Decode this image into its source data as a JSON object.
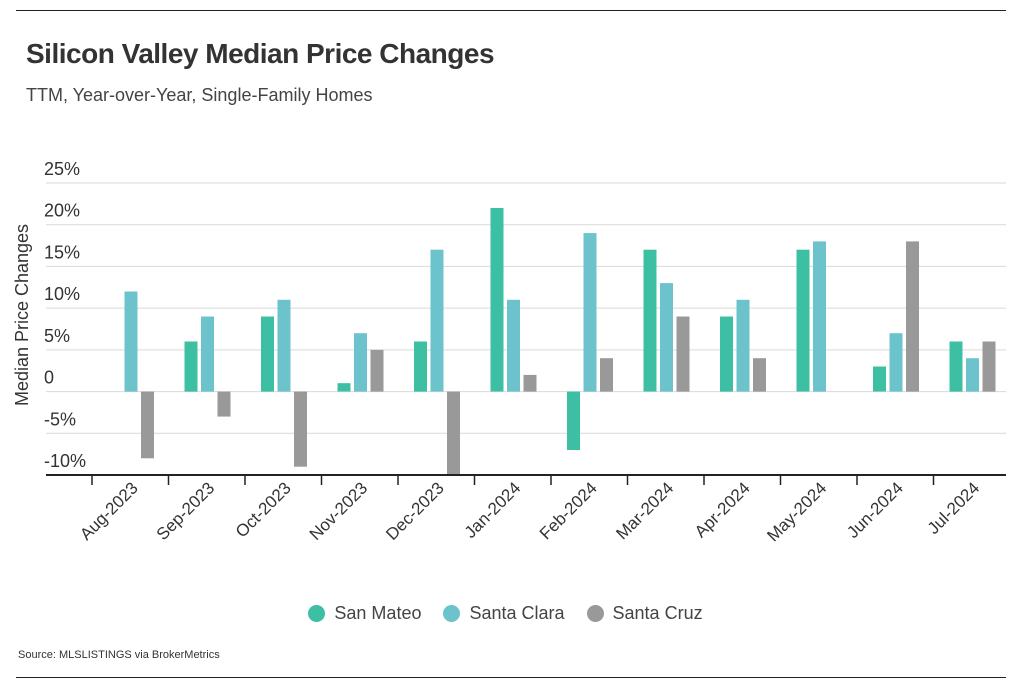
{
  "header": {
    "title": "Silicon Valley Median Price Changes",
    "subtitle": "TTM, Year-over-Year, Single-Family Homes"
  },
  "footer": {
    "source": "Source:  MLSLISTINGS via BrokerMetrics"
  },
  "colors": {
    "san_mateo": "#3dbfa3",
    "santa_clara": "#6cc3cc",
    "santa_cruz": "#999999",
    "grid": "#d9d9d9",
    "axis": "#222222",
    "text": "#333333"
  },
  "chart_data": {
    "type": "bar",
    "title": "Silicon Valley Median Price Changes",
    "subtitle": "TTM, Year-over-Year, Single-Family Homes",
    "xlabel": "",
    "ylabel": "Median Price Changes",
    "ylim": [
      -10,
      25
    ],
    "yticks": [
      25,
      20,
      15,
      10,
      5,
      0,
      -5,
      -10
    ],
    "ytick_labels": [
      "25%",
      "20%",
      "15%",
      "10%",
      "5%",
      "0",
      "-5%",
      "-10%"
    ],
    "grid": "horizontal",
    "legend_position": "bottom",
    "categories": [
      "Aug-2023",
      "Sep-2023",
      "Oct-2023",
      "Nov-2023",
      "Dec-2023",
      "Jan-2024",
      "Feb-2024",
      "Mar-2024",
      "Apr-2024",
      "May-2024",
      "Jun-2024",
      "Jul-2024"
    ],
    "series": [
      {
        "name": "San Mateo",
        "color": "#3dbfa3",
        "values": [
          null,
          6,
          9,
          1,
          6,
          22,
          -7,
          17,
          9,
          17,
          3,
          6
        ]
      },
      {
        "name": "Santa Clara",
        "color": "#6cc3cc",
        "values": [
          12,
          9,
          11,
          7,
          17,
          11,
          19,
          13,
          11,
          18,
          7,
          4
        ]
      },
      {
        "name": "Santa Cruz",
        "color": "#999999",
        "values": [
          -8,
          -3,
          -9,
          5,
          -10,
          2,
          4,
          9,
          4,
          null,
          18,
          6
        ]
      }
    ]
  }
}
